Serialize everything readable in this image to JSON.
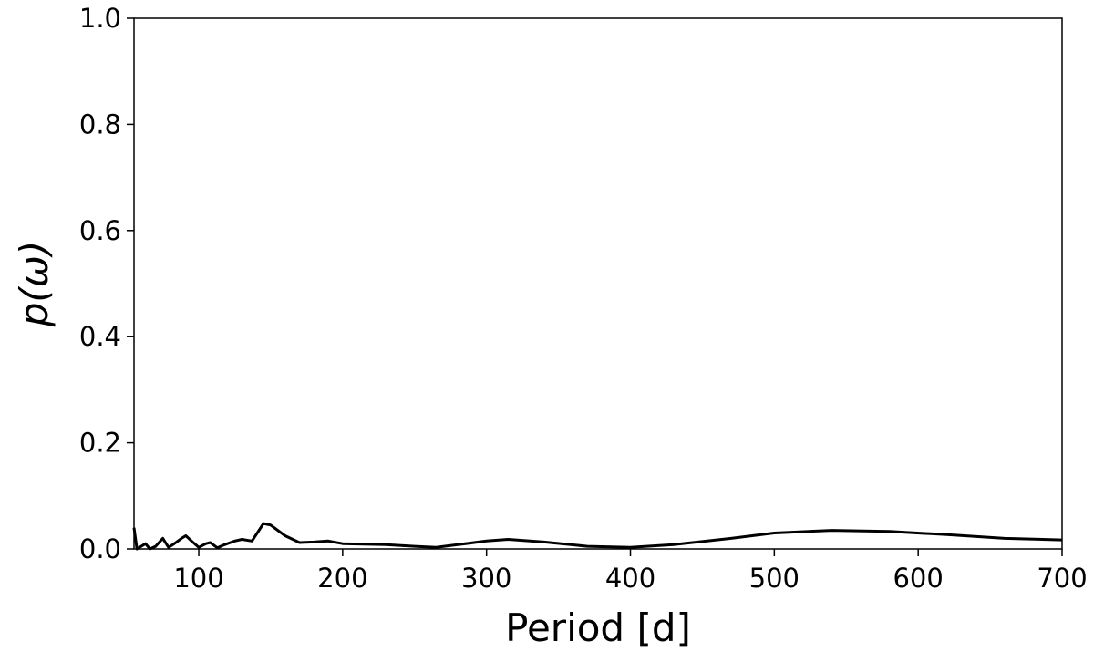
{
  "chart_data": {
    "type": "line",
    "x_label": "Period [d]",
    "y_label": "p(ω)",
    "x": [
      55,
      57,
      60,
      63,
      66,
      70,
      75,
      79,
      83,
      88,
      91,
      95,
      100,
      105,
      108,
      113,
      118,
      125,
      130,
      137,
      145,
      150,
      160,
      170,
      180,
      190,
      200,
      230,
      250,
      265,
      280,
      300,
      315,
      340,
      370,
      400,
      430,
      470,
      500,
      540,
      580,
      620,
      660,
      700
    ],
    "series": [
      {
        "color": "#000000",
        "values": [
          0.04,
          0.0,
          0.005,
          0.01,
          0.0,
          0.005,
          0.02,
          0.003,
          0.01,
          0.02,
          0.025,
          0.015,
          0.003,
          0.01,
          0.012,
          0.002,
          0.008,
          0.015,
          0.018,
          0.015,
          0.048,
          0.045,
          0.025,
          0.012,
          0.013,
          0.015,
          0.01,
          0.008,
          0.005,
          0.003,
          0.008,
          0.015,
          0.018,
          0.013,
          0.005,
          0.003,
          0.008,
          0.02,
          0.03,
          0.035,
          0.033,
          0.027,
          0.02,
          0.017
        ]
      }
    ],
    "xlim": [
      55,
      700
    ],
    "ylim": [
      0,
      1
    ],
    "xticks": [
      100,
      200,
      300,
      400,
      500,
      600,
      700
    ],
    "yticks": [
      {
        "value": 0,
        "label": "0.0"
      },
      0.2,
      0.4,
      0.6,
      0.8,
      {
        "value": 1,
        "label": "1.0"
      }
    ],
    "grid": false
  }
}
